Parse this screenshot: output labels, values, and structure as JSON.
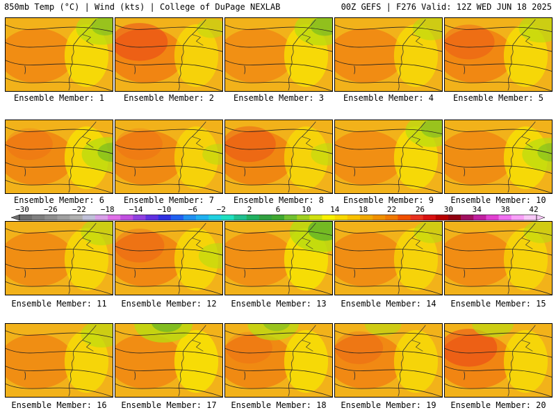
{
  "header": {
    "left": "850mb Temp (°C) | Wind (kts) | College of DuPage NEXLAB",
    "right": "00Z GEFS | F276 Valid: 12Z WED JUN 18 2025"
  },
  "panels": [
    {
      "label": "Ensemble Member: 1",
      "hot": 0.35,
      "cool": 0.55,
      "coolPos": "ne"
    },
    {
      "label": "Ensemble Member: 2",
      "hot": 0.85,
      "cool": 0.1,
      "coolPos": "ne"
    },
    {
      "label": "Ensemble Member: 3",
      "hot": 0.2,
      "cool": 0.6,
      "coolPos": "ne"
    },
    {
      "label": "Ensemble Member: 4",
      "hot": 0.45,
      "cool": 0.25,
      "coolPos": "ne"
    },
    {
      "label": "Ensemble Member: 5",
      "hot": 0.7,
      "cool": 0.4,
      "coolPos": "ne"
    },
    {
      "label": "Ensemble Member: 6",
      "hot": 0.55,
      "cool": 0.6,
      "coolPos": "e"
    },
    {
      "label": "Ensemble Member: 7",
      "hot": 0.55,
      "cool": 0.15,
      "coolPos": "e"
    },
    {
      "label": "Ensemble Member: 8",
      "hot": 0.75,
      "cool": 0.2,
      "coolPos": "e"
    },
    {
      "label": "Ensemble Member: 9",
      "hot": 0.25,
      "cool": 0.55,
      "coolPos": "ne"
    },
    {
      "label": "Ensemble Member: 10",
      "hot": 0.3,
      "cool": 0.55,
      "coolPos": "e"
    },
    {
      "label": "Ensemble Member: 11",
      "hot": 0.3,
      "cool": 0.35,
      "coolPos": "ne"
    },
    {
      "label": "Ensemble Member: 12",
      "hot": 0.65,
      "cool": 0.3,
      "coolPos": "e"
    },
    {
      "label": "Ensemble Member: 13",
      "hot": 0.2,
      "cool": 0.8,
      "coolPos": "ne"
    },
    {
      "label": "Ensemble Member: 14",
      "hot": 0.3,
      "cool": 0.2,
      "coolPos": "ne"
    },
    {
      "label": "Ensemble Member: 15",
      "hot": 0.4,
      "cool": 0.2,
      "coolPos": "ne"
    },
    {
      "label": "Ensemble Member: 16",
      "hot": 0.3,
      "cool": 0.35,
      "coolPos": "ne"
    },
    {
      "label": "Ensemble Member: 17",
      "hot": 0.35,
      "cool": 0.7,
      "coolPos": "n"
    },
    {
      "label": "Ensemble Member: 18",
      "hot": 0.55,
      "cool": 0.55,
      "coolPos": "n"
    },
    {
      "label": "Ensemble Member: 19",
      "hot": 0.6,
      "cool": 0.25,
      "coolPos": "n"
    },
    {
      "label": "Ensemble Member: 20",
      "hot": 0.85,
      "cool": 0.35,
      "coolPos": "n"
    }
  ],
  "colorbar": {
    "labels": [
      "−30",
      "−26",
      "−22",
      "−18",
      "−14",
      "−10",
      "−6",
      "−2",
      "2",
      "6",
      "10",
      "14",
      "18",
      "22",
      "26",
      "30",
      "34",
      "38",
      "42"
    ],
    "colors": [
      "#6e6e6e",
      "#7f7f7f",
      "#8f8f8f",
      "#9f9f9f",
      "#b0b0b0",
      "#bfbfd8",
      "#d8a0e8",
      "#e070e8",
      "#c050e0",
      "#9040e0",
      "#6030e0",
      "#3030e0",
      "#2060f0",
      "#2090f0",
      "#20b0f0",
      "#20d0e0",
      "#20e0c0",
      "#20c090",
      "#20b060",
      "#30a040",
      "#40a830",
      "#70c030",
      "#a0d020",
      "#d0e010",
      "#f8f000",
      "#f8d800",
      "#f8c000",
      "#f0a800",
      "#f09000",
      "#f07800",
      "#f05000",
      "#e83020",
      "#d81010",
      "#b80000",
      "#900010",
      "#a01060",
      "#c020a0",
      "#e040d0",
      "#f070f0",
      "#f8a0f8",
      "#f8c8f8"
    ]
  },
  "colors": {
    "hot": "#e8321a",
    "warm": "#f07a10",
    "mid": "#f2b21a",
    "yellow": "#f8e800",
    "lime": "#b8dc10",
    "green": "#40a830",
    "contour": "#202020"
  }
}
